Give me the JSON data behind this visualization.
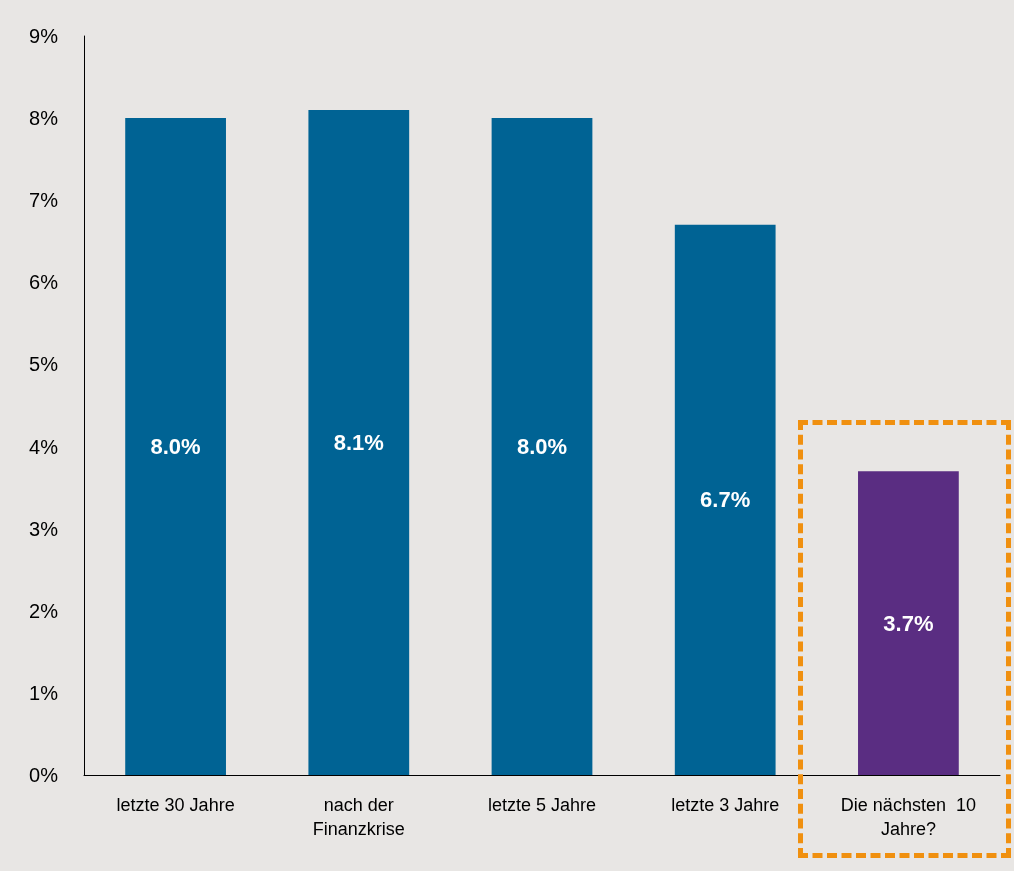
{
  "chart_data": {
    "type": "bar",
    "categories": [
      "letzte 30 Jahre",
      "nach der\nFinanzkrise",
      "letzte 5 Jahre",
      "letzte 3 Jahre",
      "Die nächsten  10\nJahre?"
    ],
    "values": [
      8.0,
      8.1,
      8.0,
      6.7,
      3.7
    ],
    "colors": [
      "#006394",
      "#006394",
      "#006394",
      "#006394",
      "#5a2d82"
    ],
    "value_labels": [
      "8.0%",
      "8.1%",
      "8.0%",
      "6.7%",
      "3.7%"
    ],
    "ylim": [
      0,
      9
    ],
    "yticks": [
      {
        "value": 0,
        "label": "0%"
      },
      {
        "value": 1,
        "label": "1%"
      },
      {
        "value": 2,
        "label": "2%"
      },
      {
        "value": 3,
        "label": "3%"
      },
      {
        "value": 4,
        "label": "4%"
      },
      {
        "value": 5,
        "label": "5%"
      },
      {
        "value": 6,
        "label": "6%"
      },
      {
        "value": 7,
        "label": "7%"
      },
      {
        "value": 8,
        "label": "8%"
      },
      {
        "value": 9,
        "label": "9%"
      }
    ],
    "grid": false
  }
}
